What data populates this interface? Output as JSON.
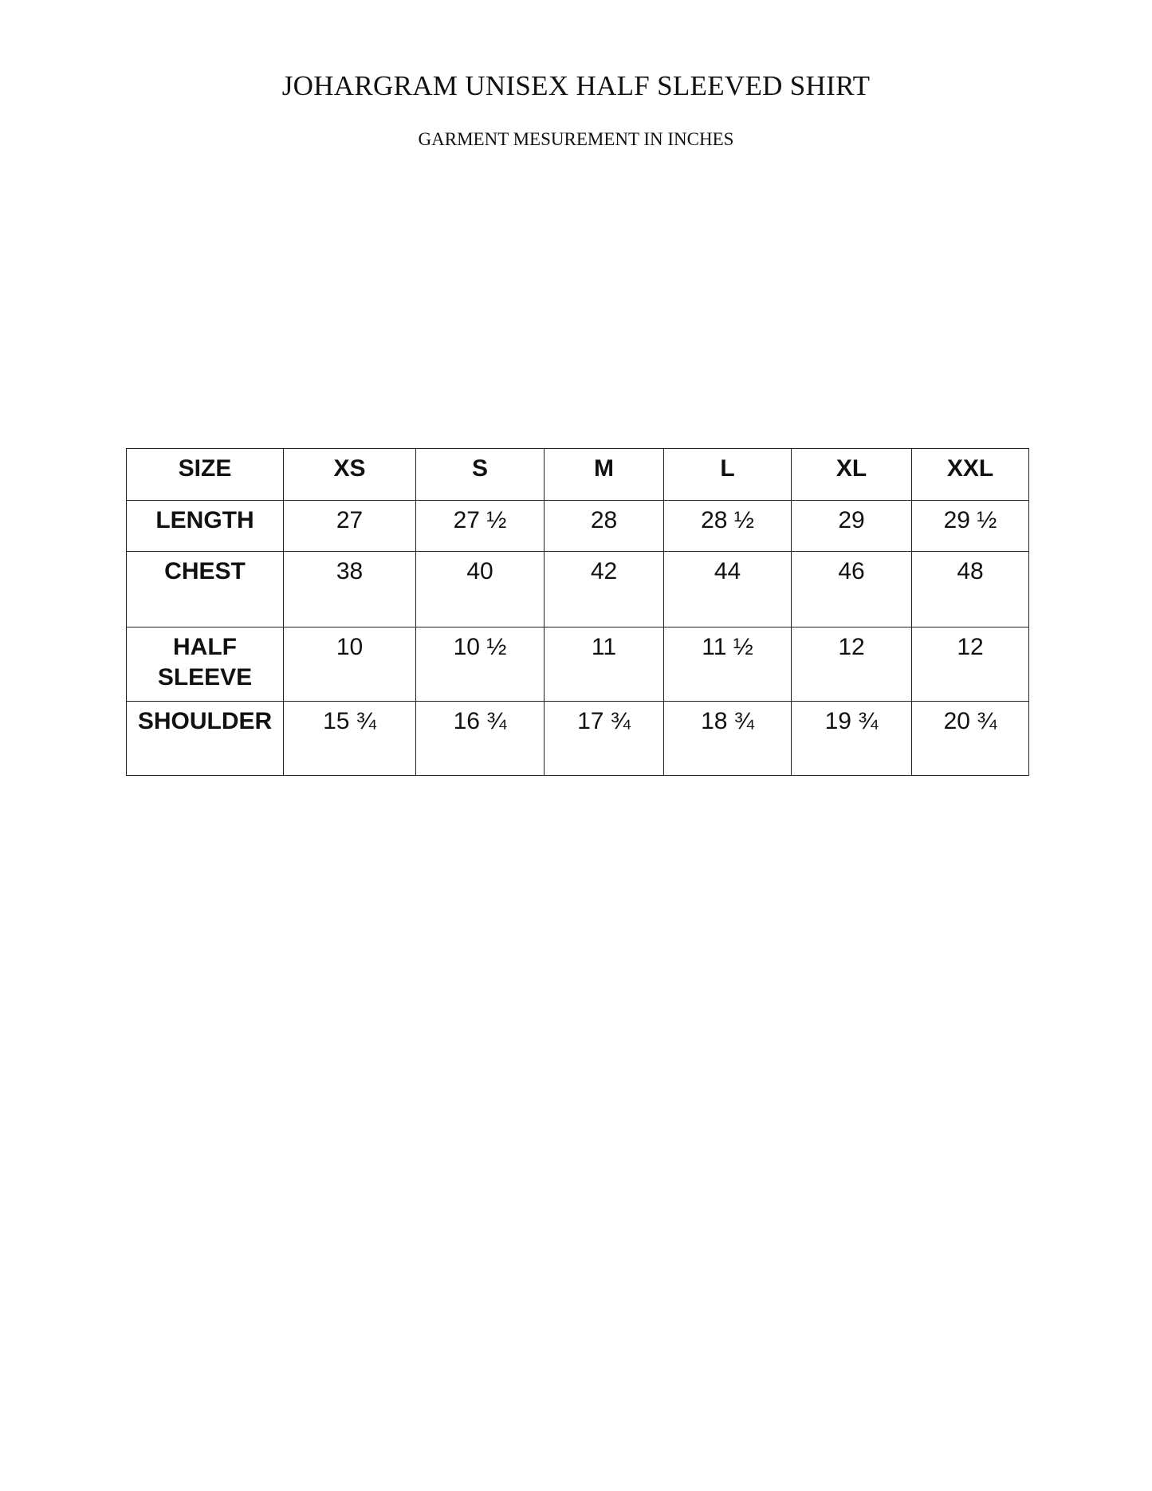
{
  "title": "JOHARGRAM UNISEX HALF SLEEVED SHIRT",
  "subtitle": "GARMENT MESUREMENT IN INCHES",
  "table": {
    "headers": [
      "SIZE",
      "XS",
      "S",
      "M",
      "L",
      "XL",
      "XXL"
    ],
    "rows": [
      {
        "label": "LENGTH",
        "values": [
          "27",
          "27 ½",
          "28",
          "28 ½",
          "29",
          "29 ½"
        ]
      },
      {
        "label": "CHEST",
        "values": [
          "38",
          "40",
          "42",
          "44",
          "46",
          "48"
        ]
      },
      {
        "label": "HALF SLEEVE",
        "values": [
          "10",
          "10 ½",
          "11",
          "11 ½",
          "12",
          "12"
        ]
      },
      {
        "label": "SHOULDER",
        "values": [
          "15 ¾",
          "16 ¾",
          "17 ¾",
          "18 ¾",
          "19 ¾",
          "20 ¾"
        ]
      }
    ]
  }
}
